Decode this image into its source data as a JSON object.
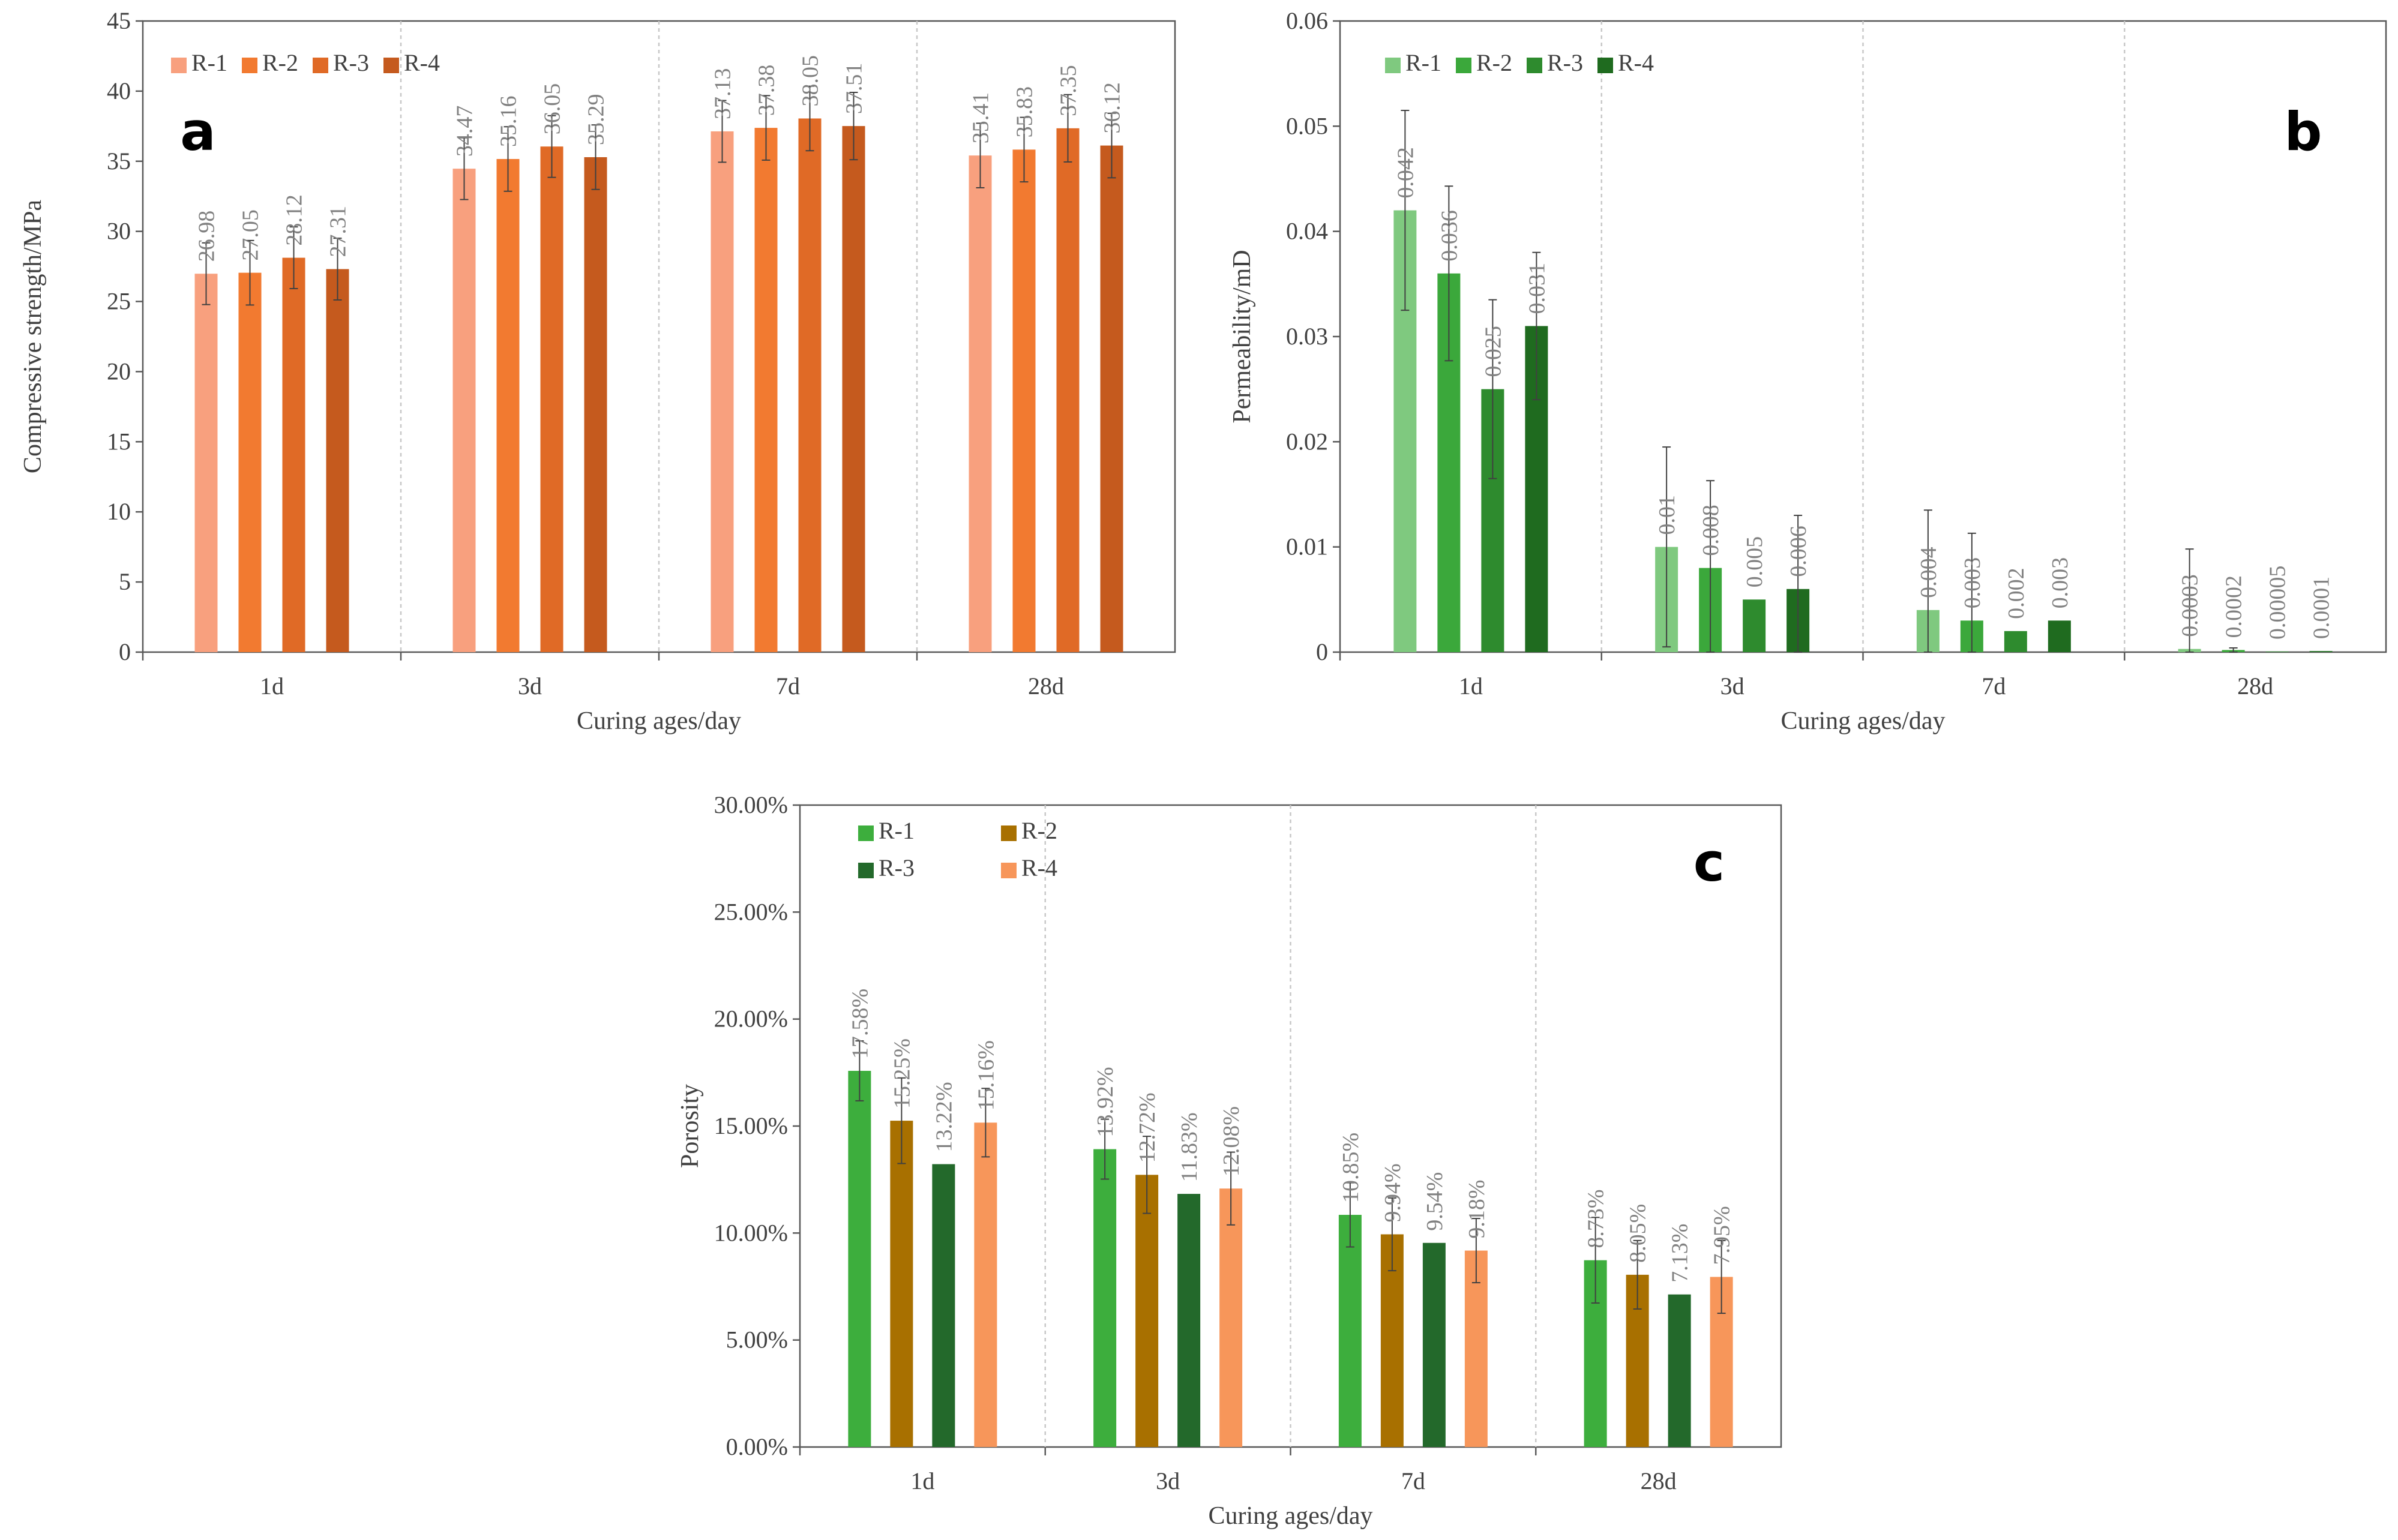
{
  "chart_data": [
    {
      "type": "bar",
      "panel": "a",
      "ylabel": "Compressive strength/MPa",
      "xlabel": "Curing ages/day",
      "categories": [
        "1d",
        "3d",
        "7d",
        "28d"
      ],
      "ylim": [
        0,
        45
      ],
      "yticks": [
        0,
        5,
        10,
        15,
        20,
        25,
        30,
        35,
        40,
        45
      ],
      "ytick_labels": [
        "0",
        "5",
        "10",
        "15",
        "20",
        "25",
        "30",
        "35",
        "40",
        "45"
      ],
      "legend_position": "top-left",
      "series": [
        {
          "name": "R-1",
          "color": "#F8A07E",
          "values": [
            26.98,
            34.47,
            37.13,
            35.41
          ],
          "labels": [
            "26.98",
            "34.47",
            "37.13",
            "35.41"
          ],
          "errors": [
            2.2,
            2.2,
            2.2,
            2.3
          ]
        },
        {
          "name": "R-2",
          "color": "#F27A30",
          "values": [
            27.05,
            35.16,
            37.38,
            35.83
          ],
          "labels": [
            "27.05",
            "35.16",
            "37.38",
            "35.83"
          ],
          "errors": [
            2.3,
            2.3,
            2.3,
            2.3
          ]
        },
        {
          "name": "R-3",
          "color": "#E06A26",
          "values": [
            28.12,
            36.05,
            38.05,
            37.35
          ],
          "labels": [
            "28.12",
            "36.05",
            "38.05",
            "37.35"
          ],
          "errors": [
            2.2,
            2.2,
            2.3,
            2.4
          ]
        },
        {
          "name": "R-4",
          "color": "#C55A1E",
          "values": [
            27.31,
            35.29,
            37.51,
            36.12
          ],
          "labels": [
            "27.31",
            "35.29",
            "37.51",
            "36.12"
          ],
          "errors": [
            2.2,
            2.3,
            2.4,
            2.3
          ]
        }
      ]
    },
    {
      "type": "bar",
      "panel": "b",
      "ylabel": "Permeability/mD",
      "xlabel": "Curing ages/day",
      "categories": [
        "1d",
        "3d",
        "7d",
        "28d"
      ],
      "ylim": [
        0,
        0.06
      ],
      "yticks": [
        0,
        0.01,
        0.02,
        0.03,
        0.04,
        0.05,
        0.06
      ],
      "ytick_labels": [
        "0",
        "0.01",
        "0.02",
        "0.03",
        "0.04",
        "0.05",
        "0.06"
      ],
      "legend_position": "top-left",
      "series": [
        {
          "name": "R-1",
          "color": "#7FC97F",
          "values": [
            0.042,
            0.01,
            0.004,
            0.0003
          ],
          "labels": [
            "0.042",
            "0.01",
            "0.004",
            "0.0003"
          ],
          "errors": [
            0.0095,
            0.0095,
            0.0095,
            0.0095
          ]
        },
        {
          "name": "R-2",
          "color": "#3BA83B",
          "values": [
            0.036,
            0.008,
            0.003,
            0.0002
          ],
          "labels": [
            "0.036",
            "0.008",
            "0.003",
            "0.0002"
          ],
          "errors": [
            0.0083,
            0.0083,
            0.0083,
            0.0002
          ]
        },
        {
          "name": "R-3",
          "color": "#2E8B2E",
          "values": [
            0.025,
            0.005,
            0.002,
            5e-05
          ],
          "labels": [
            "0.025",
            "0.005",
            "0.002",
            "0.00005"
          ],
          "errors": [
            0.0085,
            0.0,
            0.0,
            0.0
          ]
        },
        {
          "name": "R-4",
          "color": "#1F6B1F",
          "values": [
            0.031,
            0.006,
            0.003,
            0.0001
          ],
          "labels": [
            "0.031",
            "0.006",
            "0.003",
            "0.0001"
          ],
          "errors": [
            0.007,
            0.007,
            0.0,
            0.0
          ]
        }
      ]
    },
    {
      "type": "bar",
      "panel": "c",
      "ylabel": "Porosity",
      "xlabel": "Curing ages/day",
      "categories": [
        "1d",
        "3d",
        "7d",
        "28d"
      ],
      "ylim": [
        0,
        0.3
      ],
      "yticks": [
        0,
        0.05,
        0.1,
        0.15,
        0.2,
        0.25,
        0.3
      ],
      "ytick_labels": [
        "0.00%",
        "5.00%",
        "10.00%",
        "15.00%",
        "20.00%",
        "25.00%",
        "30.00%"
      ],
      "legend_position": "top-left",
      "series": [
        {
          "name": "R-1",
          "color": "#3DAE3D",
          "values": [
            0.1758,
            0.1392,
            0.1085,
            0.0873
          ],
          "labels": [
            "17.58%",
            "13.92%",
            "10.85%",
            "8.73%"
          ],
          "errors": [
            0.014,
            0.014,
            0.015,
            0.02
          ]
        },
        {
          "name": "R-2",
          "color": "#A87000",
          "values": [
            0.1525,
            0.1272,
            0.0994,
            0.0805
          ],
          "labels": [
            "15.25%",
            "12.72%",
            "9.94%",
            "8.05%"
          ],
          "errors": [
            0.02,
            0.018,
            0.017,
            0.016
          ]
        },
        {
          "name": "R-3",
          "color": "#23692B",
          "values": [
            0.1322,
            0.1183,
            0.0954,
            0.0713
          ],
          "labels": [
            "13.22%",
            "11.83%",
            "9.54%",
            "7.13%"
          ],
          "errors": [
            0.0,
            0.0,
            0.0,
            0.0
          ]
        },
        {
          "name": "R-4",
          "color": "#F7965A",
          "values": [
            0.1516,
            0.1208,
            0.0918,
            0.0795
          ],
          "labels": [
            "15.16%",
            "12.08%",
            "9.18%",
            "7.95%"
          ],
          "errors": [
            0.016,
            0.017,
            0.015,
            0.017
          ]
        }
      ]
    }
  ]
}
